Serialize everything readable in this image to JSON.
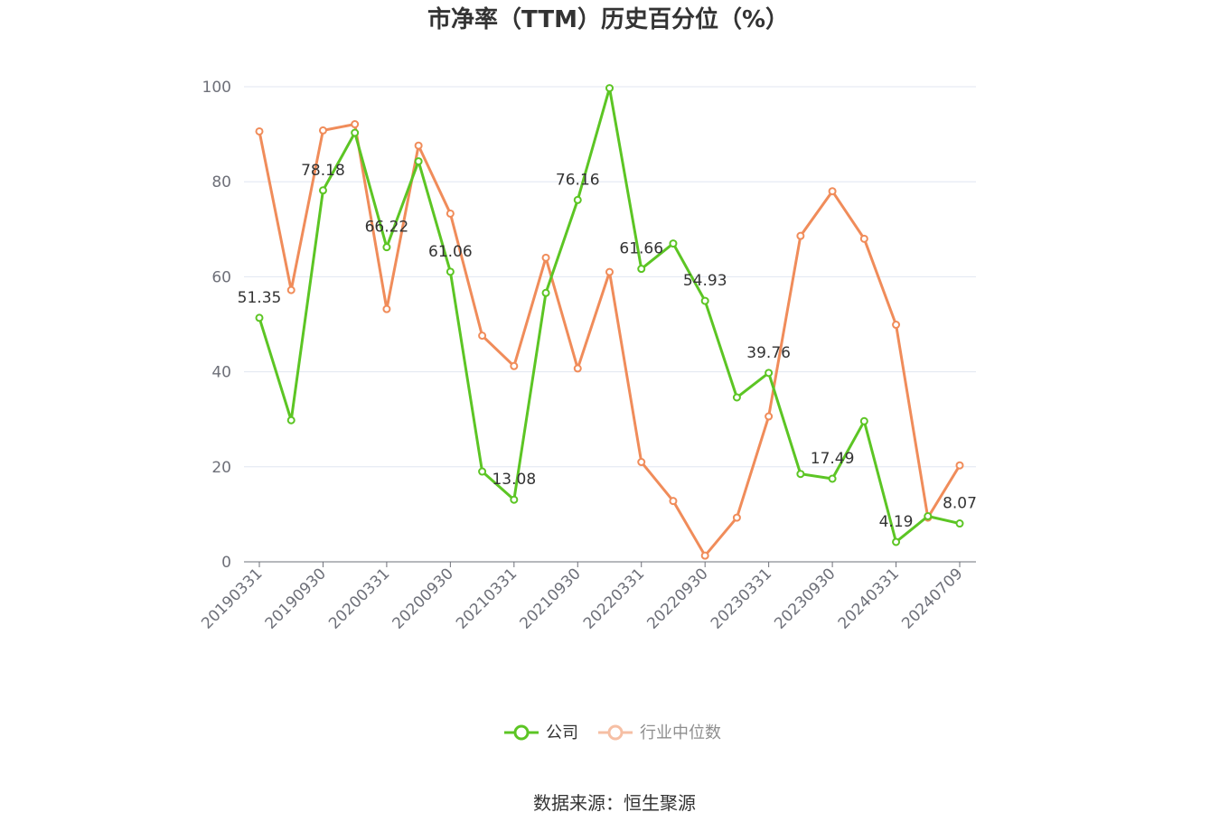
{
  "chart_data": {
    "type": "line",
    "title": "市净率（TTM）历史百分位（%）",
    "source": "数据来源：恒生聚源",
    "ylim": [
      0,
      100
    ],
    "yticks": [
      0,
      20,
      40,
      60,
      80,
      100
    ],
    "grid": true,
    "legend_position": "bottom-center",
    "x": [
      "20190331",
      "20190630",
      "20190930",
      "20191231",
      "20200331",
      "20200630",
      "20200930",
      "20201231",
      "20210331",
      "20210630",
      "20210930",
      "20211231",
      "20220331",
      "20220630",
      "20220930",
      "20221231",
      "20230331",
      "20230630",
      "20230930",
      "20231231",
      "20240331",
      "20240630",
      "20240709"
    ],
    "x_tick_labels": [
      "20190331",
      "20190930",
      "20200331",
      "20200930",
      "20210331",
      "20210930",
      "20220331",
      "20220930",
      "20230331",
      "20230930",
      "20240331",
      "20240709"
    ],
    "series": [
      {
        "name": "公司",
        "color": "#5cc524",
        "values": [
          51.35,
          29.8,
          78.18,
          90.3,
          66.22,
          84.3,
          61.06,
          19.0,
          13.08,
          56.6,
          76.16,
          99.7,
          61.66,
          67.0,
          54.93,
          34.6,
          39.76,
          18.5,
          17.49,
          29.6,
          4.19,
          9.6,
          8.07
        ],
        "labels": {
          "0": "51.35",
          "2": "78.18",
          "4": "66.22",
          "6": "61.06",
          "8": "13.08",
          "10": "76.16",
          "12": "61.66",
          "14": "54.93",
          "16": "39.76",
          "18": "17.49",
          "20": "4.19",
          "22": "8.07"
        }
      },
      {
        "name": "行业中位数",
        "color": "#f08c5a",
        "values": [
          90.6,
          57.2,
          90.8,
          92.1,
          53.2,
          87.6,
          73.3,
          47.6,
          41.2,
          64.0,
          40.7,
          61.0,
          21.0,
          12.8,
          1.3,
          9.3,
          30.6,
          68.6,
          78.0,
          68.0,
          49.9,
          9.3,
          20.3
        ]
      }
    ]
  }
}
